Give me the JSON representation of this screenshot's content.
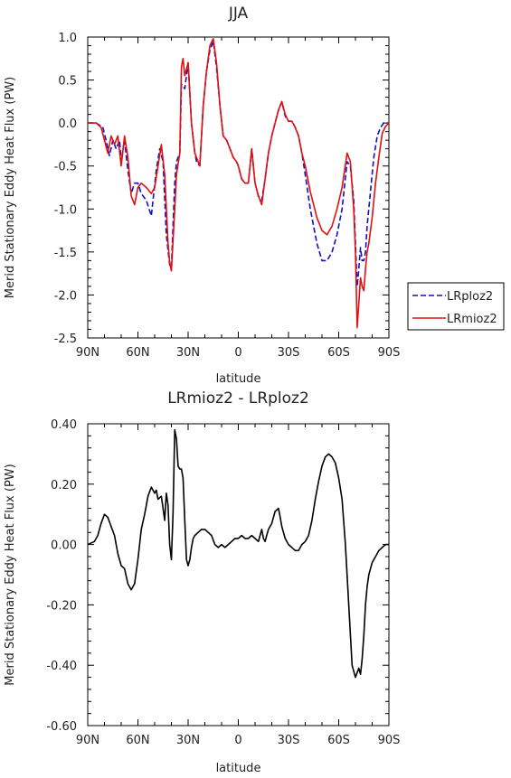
{
  "chart_data": [
    {
      "type": "line",
      "title": "JJA",
      "xlabel": "latitude",
      "ylabel": "Merid Stationary Eddy Heat Flux (PW)",
      "x_ticks": [
        90,
        60,
        30,
        0,
        -30,
        -60,
        -90
      ],
      "x_tick_labels": [
        "90N",
        "60N",
        "30N",
        "0",
        "30S",
        "60S",
        "90S"
      ],
      "xlim": [
        90,
        -90
      ],
      "ylim": [
        -2.5,
        1.0
      ],
      "y_ticks": [
        1.0,
        0.5,
        0.0,
        -0.5,
        -1.0,
        -1.5,
        -2.0,
        -2.5
      ],
      "y_tick_labels": [
        "1.0",
        "0.5",
        "0.0",
        "-0.5",
        "-1.0",
        "-1.5",
        "-2.0",
        "-2.5"
      ],
      "legend_position": "right-outside",
      "series": [
        {
          "name": "LRploz2",
          "color": "#1010c8",
          "style": "dashed",
          "x": [
            90,
            85,
            81,
            79,
            77,
            75,
            73,
            71,
            70,
            68,
            66,
            64,
            62,
            60,
            58,
            55,
            52,
            49,
            47,
            45,
            43,
            41,
            40,
            38,
            37,
            35,
            34,
            32,
            30,
            28,
            26,
            25,
            23,
            21,
            19,
            17,
            15,
            13,
            11,
            9,
            7,
            5,
            3,
            1,
            0,
            -2,
            -4,
            -6,
            -8,
            -10,
            -12,
            -14,
            -16,
            -18,
            -20,
            -22,
            -24,
            -26,
            -28,
            -30,
            -32,
            -34,
            -36,
            -38,
            -40,
            -43,
            -47,
            -50,
            -53,
            -56,
            -59,
            -62,
            -65,
            -67,
            -69,
            -70,
            -71,
            -72,
            -73,
            -74,
            -75,
            -76,
            -77,
            -79,
            -81,
            -83,
            -85,
            -87,
            -90
          ],
          "y": [
            0,
            0,
            -0.05,
            -0.2,
            -0.38,
            -0.2,
            -0.3,
            -0.2,
            -0.45,
            -0.2,
            -0.55,
            -0.82,
            -0.7,
            -0.7,
            -0.82,
            -0.9,
            -1.08,
            -0.55,
            -0.3,
            -0.45,
            -1.3,
            -1.65,
            -1.68,
            -0.7,
            -0.45,
            -0.35,
            0.45,
            0.4,
            0.7,
            0.0,
            -0.35,
            -0.45,
            -0.5,
            0.2,
            0.6,
            0.85,
            0.95,
            0.65,
            0.2,
            -0.15,
            -0.2,
            -0.3,
            -0.4,
            -0.45,
            -0.5,
            -0.65,
            -0.7,
            -0.7,
            -0.3,
            -0.7,
            -0.85,
            -0.9,
            -0.65,
            -0.35,
            -0.15,
            0.0,
            0.15,
            0.25,
            0.08,
            0.02,
            0.02,
            -0.05,
            -0.15,
            -0.35,
            -0.6,
            -1.0,
            -1.4,
            -1.6,
            -1.6,
            -1.5,
            -1.3,
            -1.0,
            -0.45,
            -0.5,
            -0.9,
            -1.4,
            -1.9,
            -1.7,
            -1.45,
            -1.6,
            -1.6,
            -1.5,
            -1.2,
            -0.8,
            -0.4,
            -0.15,
            -0.05,
            0,
            0
          ]
        },
        {
          "name": "LRmioz2",
          "color": "#e01010",
          "style": "solid",
          "x": [
            90,
            85,
            82,
            80,
            78,
            76,
            74,
            72,
            70,
            68,
            66,
            64,
            62,
            60,
            58,
            55,
            52,
            50,
            48,
            46,
            44,
            42,
            41,
            40,
            38,
            37,
            35,
            34,
            33,
            32,
            30,
            28,
            26,
            25,
            23,
            21,
            19,
            17,
            15,
            13,
            11,
            9,
            7,
            5,
            3,
            1,
            0,
            -2,
            -4,
            -6,
            -8,
            -10,
            -12,
            -14,
            -16,
            -18,
            -20,
            -22,
            -24,
            -26,
            -28,
            -30,
            -32,
            -34,
            -36,
            -38,
            -40,
            -43,
            -47,
            -50,
            -53,
            -56,
            -59,
            -62,
            -65,
            -67,
            -69,
            -70,
            -71,
            -72,
            -73,
            -74,
            -75,
            -76,
            -77,
            -78,
            -80,
            -82,
            -84,
            -86,
            -88,
            -90
          ],
          "y": [
            0,
            0,
            -0.05,
            -0.2,
            -0.35,
            -0.15,
            -0.25,
            -0.15,
            -0.5,
            -0.15,
            -0.4,
            -0.85,
            -0.95,
            -0.75,
            -0.7,
            -0.75,
            -0.82,
            -0.75,
            -0.5,
            -0.25,
            -0.6,
            -1.4,
            -1.62,
            -1.72,
            -1.0,
            -0.6,
            -0.35,
            0.65,
            0.75,
            0.55,
            0.7,
            0.0,
            -0.35,
            -0.4,
            -0.5,
            0.2,
            0.6,
            0.9,
            0.98,
            0.7,
            0.2,
            -0.15,
            -0.2,
            -0.3,
            -0.4,
            -0.45,
            -0.5,
            -0.65,
            -0.7,
            -0.7,
            -0.3,
            -0.7,
            -0.85,
            -0.95,
            -0.65,
            -0.35,
            -0.15,
            0.0,
            0.15,
            0.25,
            0.1,
            0.02,
            0.02,
            -0.05,
            -0.15,
            -0.35,
            -0.5,
            -0.8,
            -1.1,
            -1.25,
            -1.3,
            -1.2,
            -1.0,
            -0.75,
            -0.35,
            -0.45,
            -1.0,
            -1.5,
            -2.38,
            -2.1,
            -1.8,
            -1.9,
            -1.95,
            -1.7,
            -1.5,
            -1.4,
            -1.1,
            -0.7,
            -0.4,
            -0.12,
            -0.04,
            0
          ]
        }
      ]
    },
    {
      "type": "line",
      "title": "LRmioz2 - LRploz2",
      "xlabel": "latitude",
      "ylabel": "Merid Stationary Eddy Heat Flux (PW)",
      "x_ticks": [
        90,
        60,
        30,
        0,
        -30,
        -60,
        -90
      ],
      "x_tick_labels": [
        "90N",
        "60N",
        "30N",
        "0",
        "30S",
        "60S",
        "90S"
      ],
      "xlim": [
        90,
        -90
      ],
      "ylim": [
        -0.6,
        0.4
      ],
      "y_ticks": [
        0.4,
        0.2,
        0.0,
        -0.2,
        -0.4,
        -0.6
      ],
      "y_tick_labels": [
        "0.40",
        "0.20",
        "0.00",
        "-0.20",
        "-0.40",
        "-0.60"
      ],
      "series": [
        {
          "color": "#000000",
          "style": "solid",
          "x": [
            90,
            86,
            84,
            82,
            80,
            78,
            76,
            74,
            72,
            70,
            68,
            66,
            64,
            62,
            60,
            58,
            56,
            55,
            54,
            52,
            50,
            49,
            48,
            46,
            45,
            44,
            43,
            42,
            41,
            40,
            39,
            38,
            37,
            36,
            35,
            34,
            33,
            32,
            31,
            30,
            29,
            28,
            27,
            26,
            24,
            22,
            20,
            18,
            16,
            14,
            12,
            10,
            8,
            6,
            4,
            2,
            0,
            -2,
            -4,
            -6,
            -8,
            -10,
            -12,
            -14,
            -15,
            -16,
            -17,
            -18,
            -20,
            -22,
            -24,
            -25,
            -26,
            -28,
            -30,
            -32,
            -34,
            -36,
            -38,
            -40,
            -42,
            -44,
            -46,
            -48,
            -50,
            -52,
            -54,
            -56,
            -58,
            -60,
            -62,
            -64,
            -66,
            -68,
            -70,
            -72,
            -73,
            -74,
            -75,
            -76,
            -77,
            -78,
            -80,
            -82,
            -84,
            -86,
            -88,
            -90
          ],
          "y": [
            0.0,
            0.01,
            0.03,
            0.07,
            0.1,
            0.09,
            0.06,
            0.03,
            -0.03,
            -0.07,
            -0.08,
            -0.13,
            -0.15,
            -0.13,
            -0.05,
            0.05,
            0.1,
            0.13,
            0.16,
            0.19,
            0.17,
            0.18,
            0.15,
            0.16,
            0.12,
            0.08,
            0.17,
            0.13,
            0.0,
            -0.05,
            0.1,
            0.38,
            0.35,
            0.26,
            0.25,
            0.25,
            0.22,
            0.08,
            -0.05,
            -0.07,
            -0.05,
            -0.01,
            0.02,
            0.03,
            0.04,
            0.05,
            0.05,
            0.04,
            0.03,
            0.0,
            -0.01,
            0.0,
            -0.01,
            0.0,
            0.01,
            0.02,
            0.02,
            0.03,
            0.02,
            0.02,
            0.03,
            0.02,
            0.01,
            0.05,
            0.02,
            0.01,
            0.03,
            0.05,
            0.07,
            0.11,
            0.12,
            0.09,
            0.06,
            0.02,
            0.0,
            -0.01,
            -0.02,
            -0.02,
            0.0,
            0.01,
            0.03,
            0.08,
            0.15,
            0.21,
            0.26,
            0.29,
            0.3,
            0.29,
            0.27,
            0.22,
            0.15,
            0.0,
            -0.2,
            -0.4,
            -0.44,
            -0.41,
            -0.43,
            -0.38,
            -0.3,
            -0.2,
            -0.14,
            -0.1,
            -0.06,
            -0.04,
            -0.02,
            -0.01,
            0.0,
            0.0
          ]
        }
      ]
    }
  ]
}
